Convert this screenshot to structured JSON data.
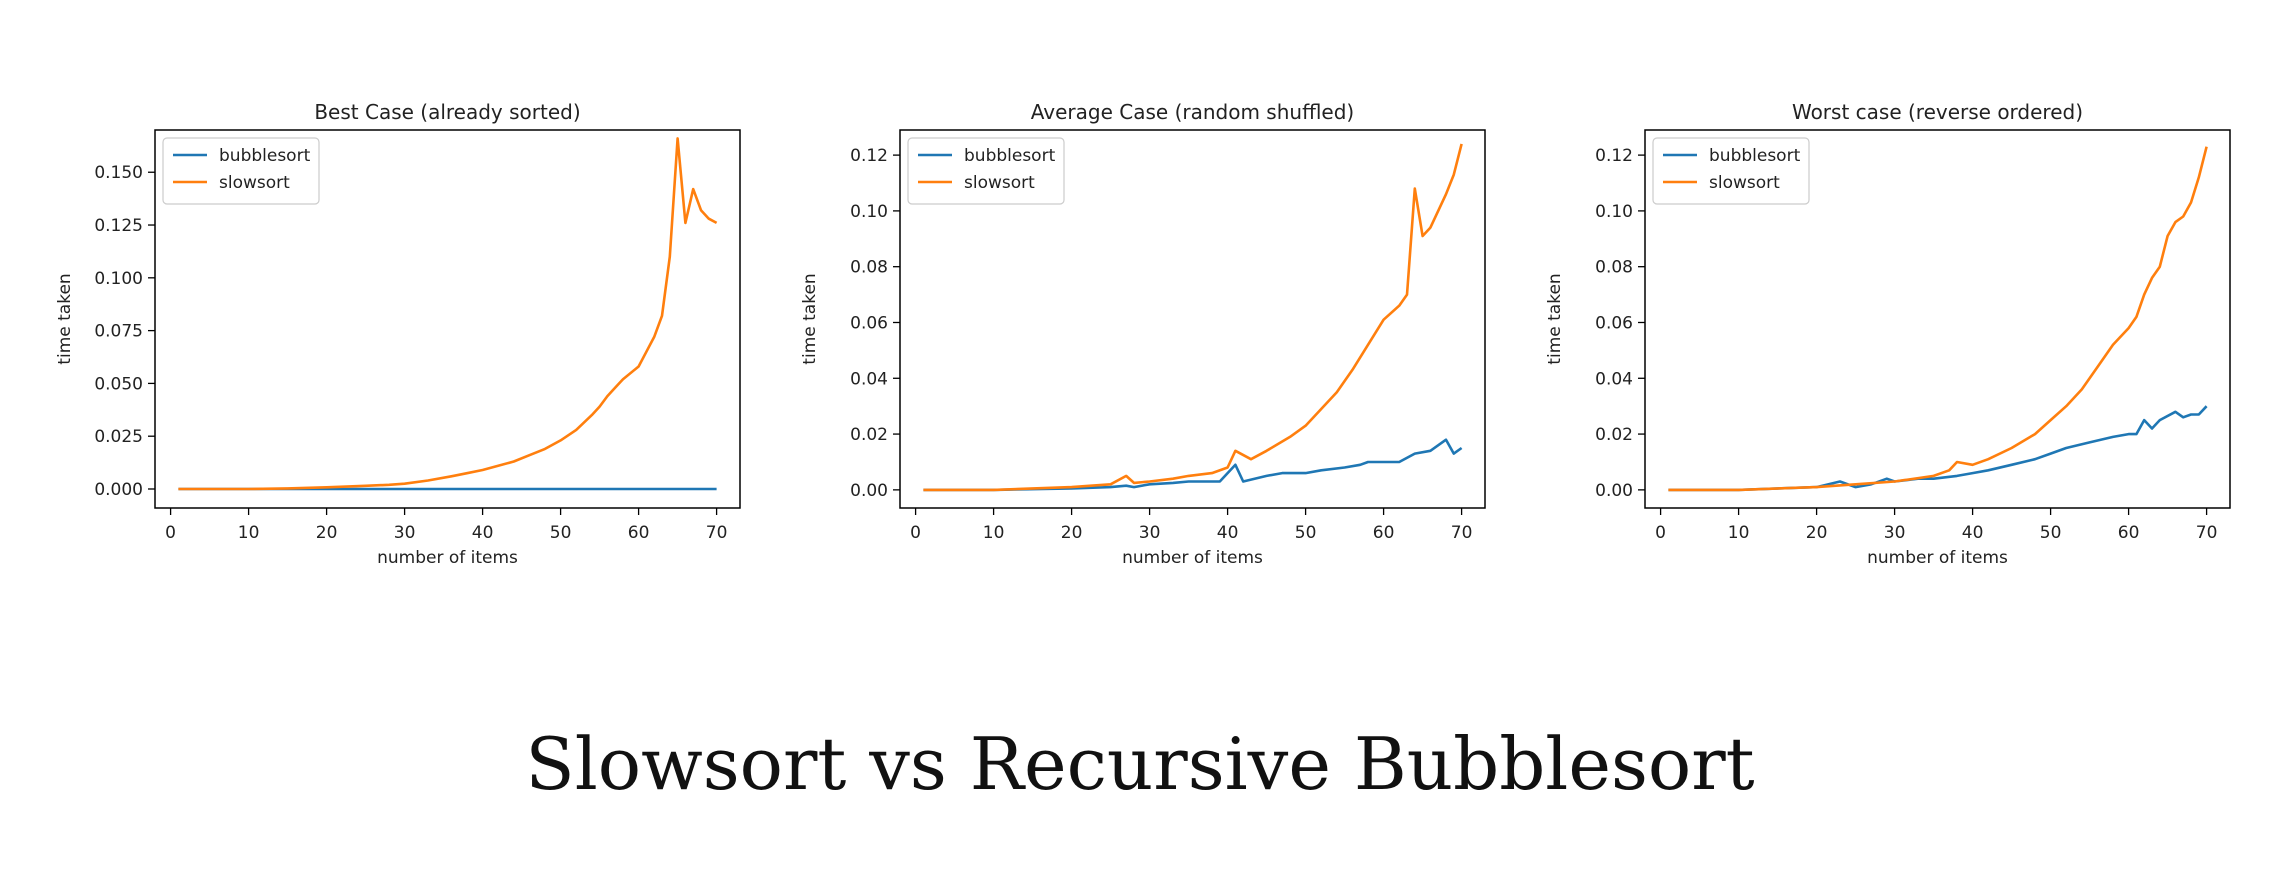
{
  "caption": "Slowsort vs Recursive Bubblesort",
  "colors": {
    "bubblesort": "#1f77b4",
    "slowsort": "#ff7f0e",
    "axis": "#000000",
    "text": "#222222"
  },
  "chart_data": [
    {
      "type": "line",
      "title": "Best Case (already sorted)",
      "xlabel": "number of items",
      "ylabel": "time taken",
      "xlim": [
        -2,
        73
      ],
      "ylim": [
        -0.009,
        0.17
      ],
      "xticks": [
        0,
        10,
        20,
        30,
        40,
        50,
        60,
        70
      ],
      "xtick_labels": [
        "0",
        "10",
        "20",
        "30",
        "40",
        "50",
        "60",
        "70"
      ],
      "yticks": [
        0,
        0.025,
        0.05,
        0.075,
        0.1,
        0.125,
        0.15
      ],
      "ytick_labels": [
        "0.000",
        "0.025",
        "0.050",
        "0.075",
        "0.100",
        "0.125",
        "0.150"
      ],
      "grid": false,
      "legend": "top-left",
      "series": [
        {
          "name": "bubblesort",
          "color": "#1f77b4",
          "x": [
            1,
            10,
            20,
            30,
            40,
            50,
            60,
            70
          ],
          "y": [
            0,
            0,
            0,
            0,
            0,
            0,
            0,
            0
          ]
        },
        {
          "name": "slowsort",
          "color": "#ff7f0e",
          "x": [
            1,
            10,
            15,
            20,
            25,
            28,
            30,
            33,
            36,
            38,
            40,
            42,
            44,
            46,
            48,
            50,
            52,
            54,
            55,
            56,
            57,
            58,
            60,
            61,
            62,
            63,
            64,
            65,
            66,
            67,
            68,
            69,
            70
          ],
          "y": [
            0,
            0,
            0.0003,
            0.0008,
            0.0015,
            0.002,
            0.0025,
            0.004,
            0.006,
            0.0075,
            0.009,
            0.011,
            0.013,
            0.016,
            0.019,
            0.023,
            0.028,
            0.035,
            0.039,
            0.044,
            0.048,
            0.052,
            0.058,
            0.065,
            0.072,
            0.082,
            0.11,
            0.166,
            0.126,
            0.142,
            0.132,
            0.128,
            0.126
          ]
        }
      ]
    },
    {
      "type": "line",
      "title": "Average Case (random shuffled)",
      "xlabel": "number of items",
      "ylabel": "time taken",
      "xlim": [
        -2,
        73
      ],
      "ylim": [
        -0.0065,
        0.129
      ],
      "xticks": [
        0,
        10,
        20,
        30,
        40,
        50,
        60,
        70
      ],
      "xtick_labels": [
        "0",
        "10",
        "20",
        "30",
        "40",
        "50",
        "60",
        "70"
      ],
      "yticks": [
        0,
        0.02,
        0.04,
        0.06,
        0.08,
        0.1,
        0.12
      ],
      "ytick_labels": [
        "0.00",
        "0.02",
        "0.04",
        "0.06",
        "0.08",
        "0.10",
        "0.12"
      ],
      "grid": false,
      "legend": "top-left",
      "series": [
        {
          "name": "bubblesort",
          "color": "#1f77b4",
          "x": [
            1,
            10,
            20,
            25,
            27,
            28,
            30,
            33,
            35,
            37,
            39,
            41,
            42,
            45,
            47,
            50,
            52,
            55,
            57,
            58,
            60,
            62,
            64,
            66,
            68,
            69,
            70
          ],
          "y": [
            0,
            0,
            0.0005,
            0.001,
            0.0015,
            0.001,
            0.002,
            0.0025,
            0.003,
            0.003,
            0.003,
            0.009,
            0.003,
            0.005,
            0.006,
            0.006,
            0.007,
            0.008,
            0.009,
            0.01,
            0.01,
            0.01,
            0.013,
            0.014,
            0.018,
            0.013,
            0.015
          ]
        },
        {
          "name": "slowsort",
          "color": "#ff7f0e",
          "x": [
            1,
            10,
            20,
            25,
            27,
            28,
            30,
            33,
            35,
            38,
            40,
            41,
            43,
            45,
            48,
            50,
            52,
            54,
            56,
            58,
            60,
            62,
            63,
            64,
            65,
            66,
            68,
            69,
            70
          ],
          "y": [
            0,
            0,
            0.001,
            0.002,
            0.005,
            0.0025,
            0.003,
            0.004,
            0.005,
            0.006,
            0.008,
            0.014,
            0.011,
            0.014,
            0.019,
            0.023,
            0.029,
            0.035,
            0.043,
            0.052,
            0.061,
            0.066,
            0.07,
            0.108,
            0.091,
            0.094,
            0.106,
            0.113,
            0.124
          ]
        }
      ]
    },
    {
      "type": "line",
      "title": "Worst case (reverse ordered)",
      "xlabel": "number of items",
      "ylabel": "time taken",
      "xlim": [
        -2,
        73
      ],
      "ylim": [
        -0.0065,
        0.129
      ],
      "xticks": [
        0,
        10,
        20,
        30,
        40,
        50,
        60,
        70
      ],
      "xtick_labels": [
        "0",
        "10",
        "20",
        "30",
        "40",
        "50",
        "60",
        "70"
      ],
      "yticks": [
        0,
        0.02,
        0.04,
        0.06,
        0.08,
        0.1,
        0.12
      ],
      "ytick_labels": [
        "0.00",
        "0.02",
        "0.04",
        "0.06",
        "0.08",
        "0.10",
        "0.12"
      ],
      "grid": false,
      "legend": "top-left",
      "series": [
        {
          "name": "bubblesort",
          "color": "#1f77b4",
          "x": [
            1,
            10,
            20,
            23,
            25,
            27,
            29,
            30,
            33,
            35,
            38,
            40,
            42,
            45,
            48,
            50,
            52,
            55,
            58,
            60,
            61,
            62,
            63,
            64,
            66,
            67,
            68,
            69,
            70
          ],
          "y": [
            0,
            0,
            0.001,
            0.003,
            0.001,
            0.002,
            0.004,
            0.003,
            0.004,
            0.004,
            0.005,
            0.006,
            0.007,
            0.009,
            0.011,
            0.013,
            0.015,
            0.017,
            0.019,
            0.02,
            0.02,
            0.025,
            0.022,
            0.025,
            0.028,
            0.026,
            0.027,
            0.027,
            0.03
          ]
        },
        {
          "name": "slowsort",
          "color": "#ff7f0e",
          "x": [
            1,
            10,
            20,
            25,
            30,
            35,
            37,
            38,
            40,
            42,
            45,
            48,
            50,
            52,
            54,
            56,
            58,
            60,
            61,
            62,
            63,
            64,
            65,
            66,
            67,
            68,
            69,
            70
          ],
          "y": [
            0,
            0,
            0.001,
            0.002,
            0.003,
            0.005,
            0.007,
            0.01,
            0.009,
            0.011,
            0.015,
            0.02,
            0.025,
            0.03,
            0.036,
            0.044,
            0.052,
            0.058,
            0.062,
            0.07,
            0.076,
            0.08,
            0.091,
            0.096,
            0.098,
            0.103,
            0.112,
            0.123
          ]
        }
      ]
    }
  ]
}
